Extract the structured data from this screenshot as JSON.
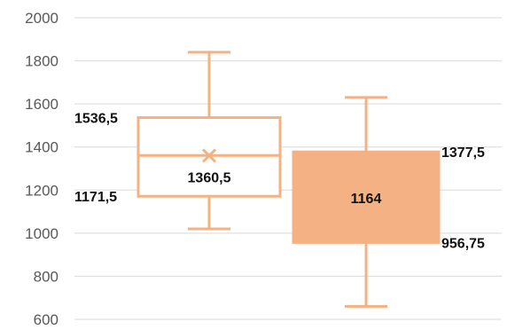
{
  "chart_data": {
    "type": "boxplot",
    "title": "",
    "xlabel": "",
    "ylabel": "",
    "ylim": [
      600,
      2000
    ],
    "yticks": [
      600,
      800,
      1000,
      1200,
      1400,
      1600,
      1800,
      2000
    ],
    "ytick_labels": [
      "600",
      "800",
      "1000",
      "1200",
      "1400",
      "1600",
      "1800",
      "2000"
    ],
    "grid": true,
    "legend": "none",
    "series": [
      {
        "min": 1020,
        "q1": 1171.5,
        "median": 1360.5,
        "mean": 1360,
        "q3": 1536.5,
        "max": 1840,
        "style": "outline",
        "color": "#f4b183",
        "labels": {
          "q3": "1536,5",
          "q1": "1171,5",
          "median": "1360,5"
        }
      },
      {
        "min": 660,
        "q1": 956.75,
        "median": 1164,
        "q3": 1377.5,
        "max": 1630,
        "style": "filled",
        "color": "#f4b183",
        "labels": {
          "q3": "1377,5",
          "q1": "956,75",
          "median": "1164"
        }
      }
    ]
  }
}
